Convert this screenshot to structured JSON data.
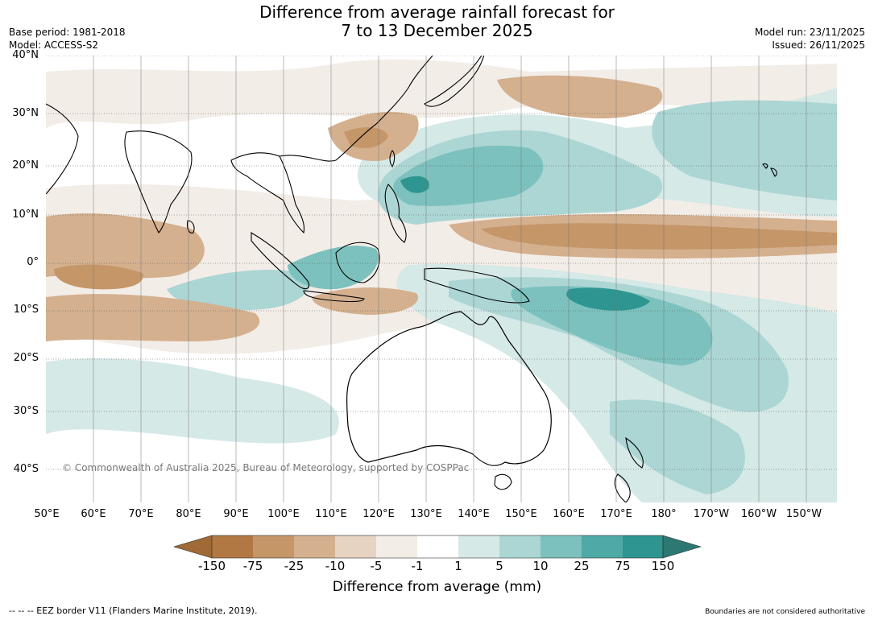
{
  "title": {
    "line1": "Difference from average rainfall forecast for",
    "line2": "7 to 13 December 2025"
  },
  "meta_left": {
    "base_period": "Base period: 1981-2018",
    "model": "Model: ACCESS-S2"
  },
  "meta_right": {
    "model_run": "Model run: 23/11/2025",
    "issued": "Issued: 26/11/2025"
  },
  "lat_labels": [
    "40°N",
    "30°N",
    "20°N",
    "10°N",
    "0°",
    "10°S",
    "20°S",
    "30°S",
    "40°S"
  ],
  "lon_labels": [
    "50°E",
    "60°E",
    "70°E",
    "80°E",
    "90°E",
    "100°E",
    "110°E",
    "120°E",
    "130°E",
    "140°E",
    "150°E",
    "160°E",
    "170°E",
    "180°",
    "170°W",
    "160°W",
    "150°W"
  ],
  "copyright": "© Commonwealth of Australia 2025, Bureau of Meteorology, supported by COSPPac",
  "colorbar": {
    "title": "Difference from average (mm)",
    "ticks": [
      "-150",
      "-75",
      "-25",
      "-10",
      "-5",
      "-1",
      "1",
      "5",
      "10",
      "25",
      "75",
      "150"
    ],
    "colors": [
      "#a06a36",
      "#b17843",
      "#c49668",
      "#d4b08f",
      "#e6d3c2",
      "#f3ede7",
      "#ffffff",
      "#d5e9e7",
      "#abd6d4",
      "#7cc1bd",
      "#4fa9a5",
      "#2e9590",
      "#2d7873"
    ]
  },
  "footer": {
    "left": "--  --  -- EEZ border V11 (Flanders Marine Institute, 2019).",
    "right": "Boundaries are not considered authoritative"
  }
}
